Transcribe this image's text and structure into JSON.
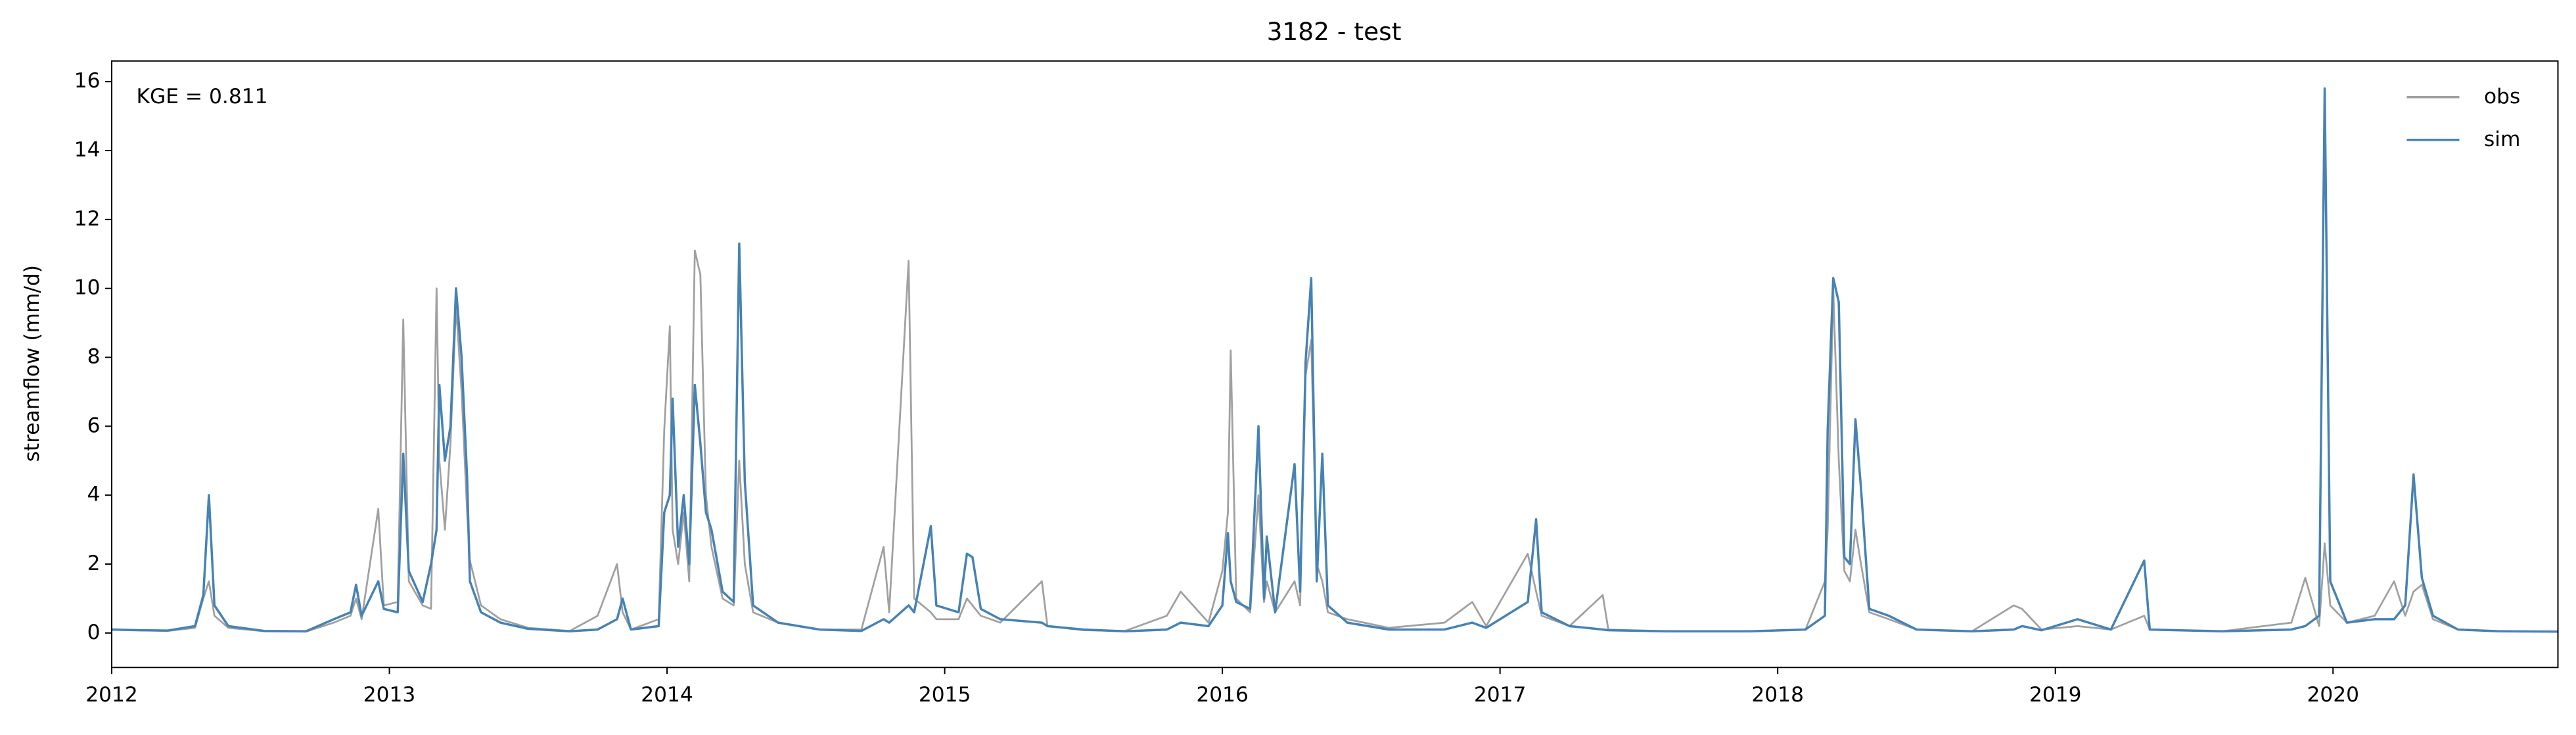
{
  "chart_data": {
    "type": "line",
    "title": "3182 - test",
    "ylabel": "streamflow (mm/d)",
    "annotation": "KGE = 0.811",
    "legend": "upper right",
    "xlim": [
      2012,
      2020.81
    ],
    "xticks": [
      2012,
      2013,
      2014,
      2015,
      2016,
      2017,
      2018,
      2019,
      2020
    ],
    "ylim": [
      -1,
      16.6
    ],
    "yticks": [
      0,
      2,
      4,
      6,
      8,
      10,
      12,
      14,
      16
    ],
    "x": [
      2012.0,
      2012.1,
      2012.2,
      2012.3,
      2012.33,
      2012.35,
      2012.37,
      2012.42,
      2012.55,
      2012.7,
      2012.8,
      2012.86,
      2012.88,
      2012.9,
      2012.96,
      2012.98,
      2013.03,
      2013.05,
      2013.07,
      2013.12,
      2013.15,
      2013.17,
      2013.18,
      2013.2,
      2013.22,
      2013.24,
      2013.26,
      2013.28,
      2013.29,
      2013.33,
      2013.4,
      2013.5,
      2013.65,
      2013.75,
      2013.82,
      2013.84,
      2013.87,
      2013.97,
      2013.99,
      2014.01,
      2014.02,
      2014.04,
      2014.06,
      2014.08,
      2014.1,
      2014.12,
      2014.14,
      2014.16,
      2014.2,
      2014.24,
      2014.26,
      2014.28,
      2014.31,
      2014.4,
      2014.55,
      2014.7,
      2014.78,
      2014.8,
      2014.87,
      2014.89,
      2014.95,
      2014.97,
      2015.05,
      2015.08,
      2015.1,
      2015.13,
      2015.2,
      2015.35,
      2015.37,
      2015.5,
      2015.65,
      2015.8,
      2015.85,
      2015.95,
      2016.0,
      2016.02,
      2016.03,
      2016.05,
      2016.1,
      2016.13,
      2016.15,
      2016.16,
      2016.19,
      2016.26,
      2016.28,
      2016.3,
      2016.32,
      2016.34,
      2016.36,
      2016.38,
      2016.45,
      2016.6,
      2016.8,
      2016.9,
      2016.95,
      2017.1,
      2017.13,
      2017.15,
      2017.25,
      2017.37,
      2017.39,
      2017.6,
      2017.9,
      2018.1,
      2018.17,
      2018.18,
      2018.2,
      2018.22,
      2018.24,
      2018.26,
      2018.28,
      2018.3,
      2018.33,
      2018.4,
      2018.5,
      2018.7,
      2018.85,
      2018.88,
      2018.95,
      2019.08,
      2019.2,
      2019.32,
      2019.34,
      2019.6,
      2019.85,
      2019.9,
      2019.95,
      2019.97,
      2019.99,
      2020.05,
      2020.15,
      2020.22,
      2020.26,
      2020.29,
      2020.32,
      2020.36,
      2020.45,
      2020.6,
      2020.81
    ],
    "series": [
      {
        "name": "obs",
        "color": "#a0a0a0",
        "values": [
          0.1,
          0.08,
          0.06,
          0.15,
          1.0,
          1.5,
          0.5,
          0.15,
          0.05,
          0.04,
          0.3,
          0.5,
          1.0,
          0.4,
          3.6,
          0.8,
          0.9,
          9.1,
          1.5,
          0.8,
          0.7,
          10.0,
          5.0,
          3.0,
          5.5,
          9.5,
          7.0,
          3.5,
          2.1,
          0.8,
          0.4,
          0.15,
          0.06,
          0.5,
          2.0,
          0.6,
          0.1,
          0.4,
          5.9,
          8.9,
          3.0,
          2.0,
          3.5,
          1.5,
          11.1,
          10.4,
          4.0,
          2.5,
          1.0,
          0.8,
          5.0,
          2.0,
          0.6,
          0.3,
          0.1,
          0.1,
          2.5,
          0.6,
          10.8,
          1.0,
          0.6,
          0.4,
          0.4,
          1.0,
          0.8,
          0.5,
          0.3,
          1.5,
          0.2,
          0.08,
          0.06,
          0.5,
          1.2,
          0.3,
          1.8,
          3.5,
          8.2,
          1.0,
          0.6,
          4.0,
          0.9,
          1.5,
          0.6,
          1.5,
          0.8,
          7.5,
          8.5,
          2.0,
          1.5,
          0.6,
          0.4,
          0.15,
          0.3,
          0.9,
          0.2,
          2.3,
          1.2,
          0.5,
          0.2,
          1.1,
          0.1,
          0.05,
          0.05,
          0.1,
          1.5,
          3.0,
          10.0,
          5.0,
          1.8,
          1.5,
          3.0,
          2.0,
          0.6,
          0.4,
          0.1,
          0.05,
          0.8,
          0.7,
          0.1,
          0.2,
          0.1,
          0.5,
          0.1,
          0.05,
          0.3,
          1.6,
          0.2,
          2.6,
          0.8,
          0.3,
          0.5,
          1.5,
          0.5,
          1.2,
          1.4,
          0.4,
          0.1,
          0.05,
          0.04
        ]
      },
      {
        "name": "sim",
        "color": "#4682b4",
        "values": [
          0.1,
          0.08,
          0.07,
          0.2,
          1.1,
          4.0,
          0.8,
          0.2,
          0.06,
          0.05,
          0.4,
          0.6,
          1.4,
          0.5,
          1.5,
          0.7,
          0.6,
          5.2,
          1.8,
          0.9,
          2.0,
          3.0,
          7.2,
          5.0,
          6.0,
          10.0,
          8.0,
          4.5,
          1.5,
          0.6,
          0.3,
          0.12,
          0.05,
          0.1,
          0.4,
          1.0,
          0.1,
          0.2,
          3.5,
          4.0,
          6.8,
          2.5,
          4.0,
          2.0,
          7.2,
          5.5,
          3.5,
          3.0,
          1.2,
          0.9,
          11.3,
          4.4,
          0.8,
          0.3,
          0.1,
          0.06,
          0.4,
          0.3,
          0.8,
          0.6,
          3.1,
          0.8,
          0.6,
          2.3,
          2.2,
          0.7,
          0.4,
          0.3,
          0.2,
          0.1,
          0.05,
          0.1,
          0.3,
          0.2,
          0.8,
          2.9,
          1.5,
          0.9,
          0.7,
          6.0,
          1.0,
          2.8,
          0.6,
          4.9,
          1.2,
          7.9,
          10.3,
          1.5,
          5.2,
          0.8,
          0.3,
          0.1,
          0.1,
          0.3,
          0.15,
          0.9,
          3.3,
          0.6,
          0.2,
          0.1,
          0.08,
          0.05,
          0.05,
          0.1,
          0.5,
          5.9,
          10.3,
          9.6,
          2.2,
          2.0,
          6.2,
          4.2,
          0.7,
          0.5,
          0.1,
          0.05,
          0.1,
          0.2,
          0.08,
          0.4,
          0.1,
          2.1,
          0.1,
          0.05,
          0.1,
          0.2,
          0.5,
          15.8,
          1.5,
          0.3,
          0.4,
          0.4,
          0.8,
          4.6,
          1.6,
          0.5,
          0.1,
          0.05,
          0.04
        ]
      }
    ]
  }
}
